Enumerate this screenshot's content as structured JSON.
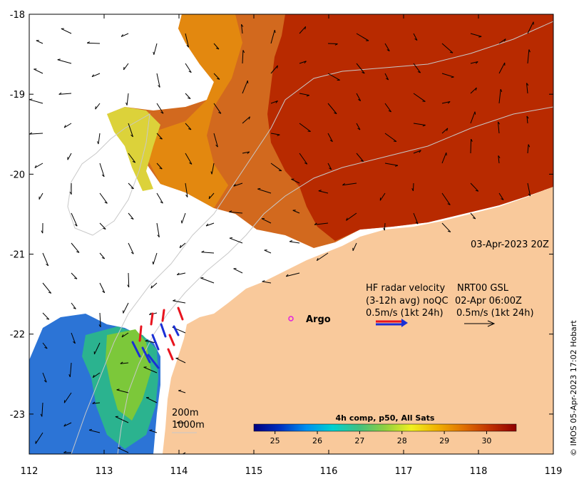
{
  "map": {
    "date_label": "03-Apr-2023 20Z",
    "x_ticks": [
      {
        "value": 112,
        "label": "112"
      },
      {
        "value": 113,
        "label": "113"
      },
      {
        "value": 114,
        "label": "114"
      },
      {
        "value": 115,
        "label": "115"
      },
      {
        "value": 116,
        "label": "116"
      },
      {
        "value": 117,
        "label": "117"
      },
      {
        "value": 118,
        "label": "118"
      },
      {
        "value": 119,
        "label": "119"
      }
    ],
    "y_ticks": [
      {
        "value": -18,
        "label": "-18"
      },
      {
        "value": -19,
        "label": "-19"
      },
      {
        "value": -20,
        "label": "-20"
      },
      {
        "value": -21,
        "label": "-21"
      },
      {
        "value": -22,
        "label": "-22"
      },
      {
        "value": -23,
        "label": "-23"
      }
    ],
    "lon_range": [
      112,
      119
    ],
    "lat_range": [
      -23.5,
      -18
    ],
    "colors": {
      "land": "#f9c99b",
      "warm": "#b82a00",
      "cool": "#2c74d6",
      "hf_red": "#e8141e",
      "hf_blue": "#1a2fd6",
      "argo": "#e020e0"
    }
  },
  "legend": {
    "hf_title": "HF radar velocity",
    "hf_avg": "(3-12h avg) noQC",
    "hf_scale": "0.5m/s (1kt 24h)",
    "nrt_title": "NRT00 GSL",
    "nrt_time": "02-Apr 06:00Z",
    "nrt_scale": "0.5m/s (1kt 24h)",
    "argo_label": "Argo",
    "iso_200": "200m",
    "iso_1000": "1000m"
  },
  "colorbar": {
    "title": "4h comp, p50, All Sats",
    "range": [
      24.5,
      30.7
    ],
    "ticks": [
      {
        "value": 25,
        "label": "25"
      },
      {
        "value": 26,
        "label": "26"
      },
      {
        "value": 27,
        "label": "27"
      },
      {
        "value": 28,
        "label": "28"
      },
      {
        "value": 29,
        "label": "29"
      },
      {
        "value": 30,
        "label": "30"
      }
    ],
    "stops": [
      "#000080",
      "#0030c0",
      "#0090f0",
      "#00d0d0",
      "#40c080",
      "#90d040",
      "#f0f020",
      "#f0b000",
      "#e07000",
      "#c03000",
      "#900000"
    ]
  },
  "copyright": "© IMOS 05-Apr-2023 17:02 Hobart"
}
